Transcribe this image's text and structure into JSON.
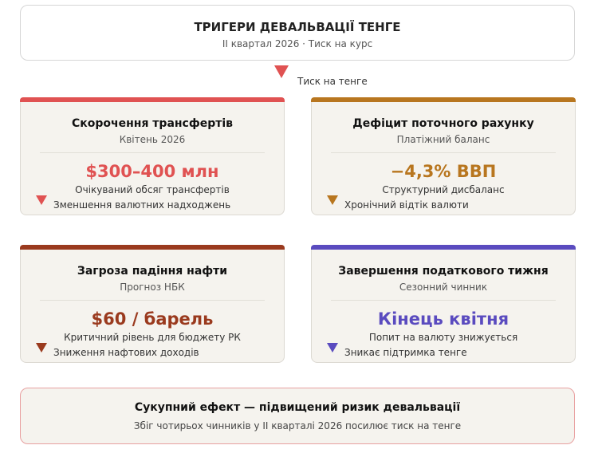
{
  "header": {
    "title": "ТРИГЕРИ ДЕВАЛЬВАЦІЇ ТЕНГЕ",
    "subtitle": "ІІ квартал 2026 · Тиск на курс"
  },
  "pressure_label": "Тиск на тенге",
  "colors": {
    "red": "#e05252",
    "amber": "#b8761f",
    "rust": "#9a3a1e",
    "purple": "#5a4bbf"
  },
  "cards": [
    {
      "title": "Скорочення трансфертів",
      "subtitle": "Квітень 2026",
      "value": "$300–400 млн",
      "desc": "Очікуваний обсяг трансфертів",
      "note": "Зменшення валютних надходжень",
      "icon": "down-triangle-icon"
    },
    {
      "title": "Дефіцит поточного рахунку",
      "subtitle": "Платіжний баланс",
      "value": "−4,3% ВВП",
      "desc": "Структурний дисбаланс",
      "note": "Хронічний відтік валюти",
      "icon": "down-triangle-icon"
    },
    {
      "title": "Загроза падіння нафти",
      "subtitle": "Прогноз НБК",
      "value": "$60 / барель",
      "desc": "Критичний рівень для бюджету РК",
      "note": "Зниження нафтових доходів",
      "icon": "down-triangle-icon"
    },
    {
      "title": "Завершення податкового тижня",
      "subtitle": "Сезонний чинник",
      "value": "Кінець квітня",
      "desc": "Попит на валюту знижується",
      "note": "Зникає підтримка тенге",
      "icon": "down-triangle-icon"
    }
  ],
  "summary": {
    "title": "Сукупний ефект — підвищений ризик девальвації",
    "text": "Збіг чотирьох чинників у ІІ кварталі 2026 посилює тиск на тенге"
  }
}
